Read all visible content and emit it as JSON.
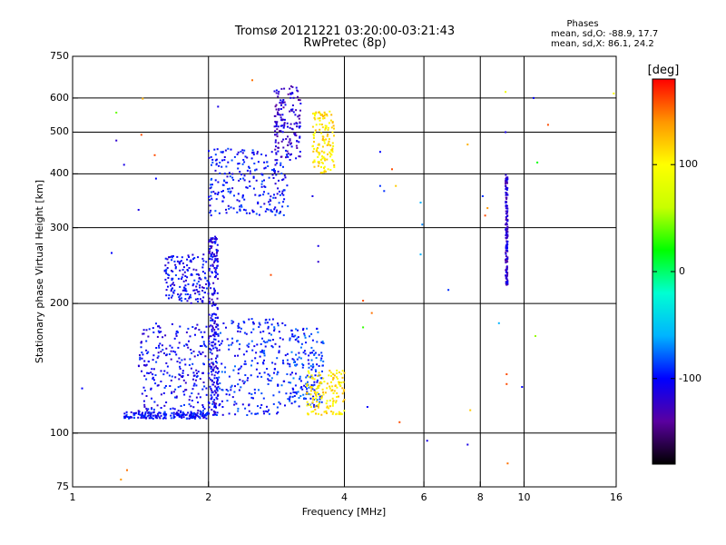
{
  "header": {
    "title_line1": "Tromsø 20121221 03:20:00-03:21:43",
    "title_line2": "RwPretec (8p)"
  },
  "stats": {
    "heading": "Phases",
    "line1": "mean, sd,O: -88.9, 17.7",
    "line2": "mean, sd,X: 86.1, 24.2"
  },
  "colorbar": {
    "unit_label": "[deg]",
    "ticks": [
      100,
      0,
      -100
    ],
    "range": [
      -180,
      180
    ],
    "palette": [
      "#000000",
      "#5a00a0",
      "#0000ff",
      "#00b4ff",
      "#00ffd2",
      "#00ff00",
      "#c8ff00",
      "#ffff00",
      "#ff9600",
      "#ff0000"
    ]
  },
  "chart_data": {
    "type": "scatter",
    "title": "Tromsø 20121221 03:20:00-03:21:43",
    "subtitle": "RwPretec (8p)",
    "xlabel": "Frequency [MHz]",
    "ylabel": "Stationary phase Virtual Height [km]",
    "x_scale": "log",
    "y_scale": "log",
    "xlim": [
      1,
      16
    ],
    "ylim": [
      75,
      750
    ],
    "x_ticks": [
      1,
      2,
      4,
      6,
      8,
      10,
      16
    ],
    "x_grid": [
      2,
      4,
      6,
      8,
      10
    ],
    "y_ticks": [
      75,
      100,
      200,
      300,
      400,
      500,
      600,
      750
    ],
    "y_grid": [
      100,
      200,
      300,
      400,
      500,
      600
    ],
    "grid": true,
    "color_by": "phase [deg]",
    "clusters": [
      {
        "x": [
          1.3,
          2.0
        ],
        "y": [
          108,
          112
        ],
        "phase": -100
      },
      {
        "x": [
          1.4,
          2.0
        ],
        "y": [
          112,
          180
        ],
        "phase": -105
      },
      {
        "x": [
          2.0,
          3.0
        ],
        "y": [
          110,
          185
        ],
        "phase": -95
      },
      {
        "x": [
          2.0,
          2.1
        ],
        "y": [
          110,
          290
        ],
        "phase": -110
      },
      {
        "x": [
          1.6,
          2.0
        ],
        "y": [
          200,
          260
        ],
        "phase": -105
      },
      {
        "x": [
          3.0,
          3.6
        ],
        "y": [
          115,
          175
        ],
        "phase": -90
      },
      {
        "x": [
          3.3,
          4.0
        ],
        "y": [
          110,
          140
        ],
        "phase": 110
      },
      {
        "x": [
          2.0,
          3.0
        ],
        "y": [
          320,
          460
        ],
        "phase": -100
      },
      {
        "x": [
          2.8,
          3.2
        ],
        "y": [
          430,
          640
        ],
        "phase": -120
      },
      {
        "x": [
          3.4,
          3.8
        ],
        "y": [
          400,
          560
        ],
        "phase": 110
      },
      {
        "x": [
          9.1,
          9.2
        ],
        "y": [
          220,
          400
        ],
        "phase": -120
      }
    ],
    "points": [
      {
        "x": 1.05,
        "y": 127,
        "phase": -100
      },
      {
        "x": 1.22,
        "y": 262,
        "phase": -100
      },
      {
        "x": 1.25,
        "y": 555,
        "phase": 40
      },
      {
        "x": 1.25,
        "y": 478,
        "phase": -120
      },
      {
        "x": 1.3,
        "y": 420,
        "phase": -110
      },
      {
        "x": 1.28,
        "y": 78,
        "phase": 140
      },
      {
        "x": 1.32,
        "y": 82,
        "phase": 150
      },
      {
        "x": 1.4,
        "y": 330,
        "phase": -110
      },
      {
        "x": 1.42,
        "y": 493,
        "phase": 160
      },
      {
        "x": 1.43,
        "y": 598,
        "phase": 130
      },
      {
        "x": 1.52,
        "y": 442,
        "phase": 160
      },
      {
        "x": 1.53,
        "y": 390,
        "phase": -100
      },
      {
        "x": 2.1,
        "y": 573,
        "phase": -110
      },
      {
        "x": 2.5,
        "y": 660,
        "phase": 150
      },
      {
        "x": 2.75,
        "y": 233,
        "phase": 160
      },
      {
        "x": 3.4,
        "y": 355,
        "phase": -110
      },
      {
        "x": 3.5,
        "y": 272,
        "phase": -110
      },
      {
        "x": 3.5,
        "y": 250,
        "phase": -120
      },
      {
        "x": 4.4,
        "y": 176,
        "phase": 30
      },
      {
        "x": 4.4,
        "y": 203,
        "phase": 160
      },
      {
        "x": 4.5,
        "y": 115,
        "phase": -100
      },
      {
        "x": 4.6,
        "y": 190,
        "phase": 150
      },
      {
        "x": 4.8,
        "y": 450,
        "phase": -100
      },
      {
        "x": 4.8,
        "y": 375,
        "phase": -90
      },
      {
        "x": 4.9,
        "y": 365,
        "phase": -90
      },
      {
        "x": 5.1,
        "y": 410,
        "phase": 160
      },
      {
        "x": 5.2,
        "y": 375,
        "phase": 120
      },
      {
        "x": 5.3,
        "y": 106,
        "phase": 160
      },
      {
        "x": 5.9,
        "y": 343,
        "phase": -60
      },
      {
        "x": 5.9,
        "y": 260,
        "phase": -60
      },
      {
        "x": 5.95,
        "y": 305,
        "phase": -70
      },
      {
        "x": 6.1,
        "y": 96,
        "phase": -110
      },
      {
        "x": 6.8,
        "y": 215,
        "phase": -90
      },
      {
        "x": 7.5,
        "y": 94,
        "phase": -110
      },
      {
        "x": 7.5,
        "y": 468,
        "phase": 130
      },
      {
        "x": 7.6,
        "y": 113,
        "phase": 120
      },
      {
        "x": 8.1,
        "y": 355,
        "phase": -90
      },
      {
        "x": 8.2,
        "y": 320,
        "phase": 160
      },
      {
        "x": 8.3,
        "y": 333,
        "phase": 140
      },
      {
        "x": 8.8,
        "y": 180,
        "phase": -60
      },
      {
        "x": 9.1,
        "y": 620,
        "phase": 90
      },
      {
        "x": 9.1,
        "y": 500,
        "phase": -110
      },
      {
        "x": 9.15,
        "y": 137,
        "phase": 160
      },
      {
        "x": 9.15,
        "y": 130,
        "phase": 160
      },
      {
        "x": 9.2,
        "y": 85,
        "phase": 150
      },
      {
        "x": 9.9,
        "y": 128,
        "phase": -100
      },
      {
        "x": 10.5,
        "y": 600,
        "phase": -100
      },
      {
        "x": 10.6,
        "y": 168,
        "phase": 50
      },
      {
        "x": 10.7,
        "y": 425,
        "phase": 20
      },
      {
        "x": 11.3,
        "y": 520,
        "phase": 160
      },
      {
        "x": 15.8,
        "y": 615,
        "phase": 100
      }
    ]
  }
}
